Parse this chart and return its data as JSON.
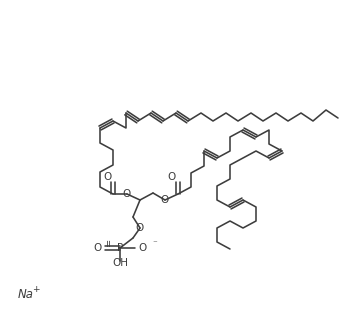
{
  "background": "#ffffff",
  "line_color": "#3d3d3d",
  "line_width": 1.15,
  "figsize": [
    3.47,
    3.14
  ],
  "dpi": 100,
  "na_label": "Na",
  "na_sup": "+",
  "phosphate_labels": {
    "O_eq": "O",
    "P": "P",
    "O_minus": "O",
    "OH": "OH",
    "O_left": "O"
  }
}
